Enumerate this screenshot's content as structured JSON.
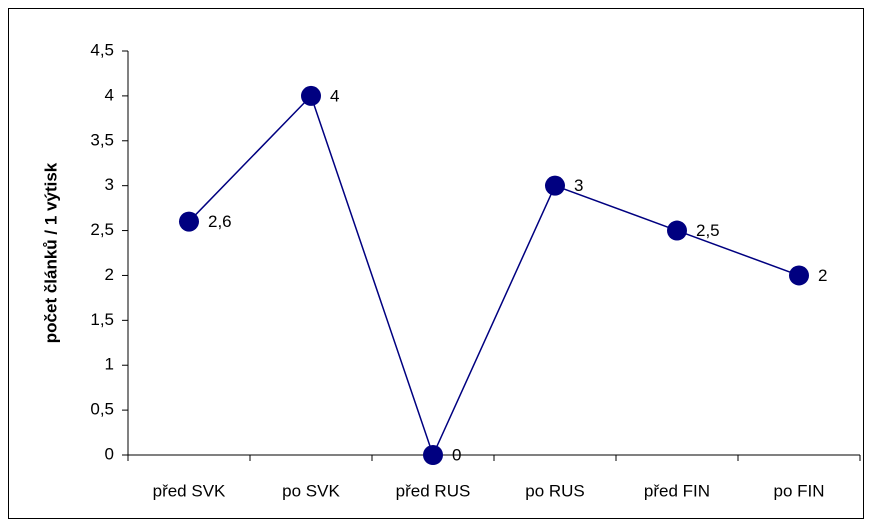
{
  "chart_data": {
    "type": "line",
    "y_label": "počet článků / 1 výtisk",
    "categories": [
      "před SVK",
      "po SVK",
      "před RUS",
      "po RUS",
      "před FIN",
      "po FIN"
    ],
    "values": [
      2.6,
      4,
      0,
      3,
      2.5,
      2
    ],
    "value_labels": [
      "2,6",
      "4",
      "0",
      "3",
      "2,5",
      "2"
    ],
    "color": "#000080",
    "ylim": [
      0,
      4.5
    ],
    "yticks": [
      0,
      {
        "value": 0.5,
        "label": "0,5"
      },
      1,
      {
        "value": 1.5,
        "label": "1,5"
      },
      2,
      {
        "value": 2.5,
        "label": "2,5"
      },
      3,
      {
        "value": 3.5,
        "label": "3,5"
      },
      4,
      {
        "value": 4.5,
        "label": "4,5"
      }
    ],
    "grid": false
  }
}
